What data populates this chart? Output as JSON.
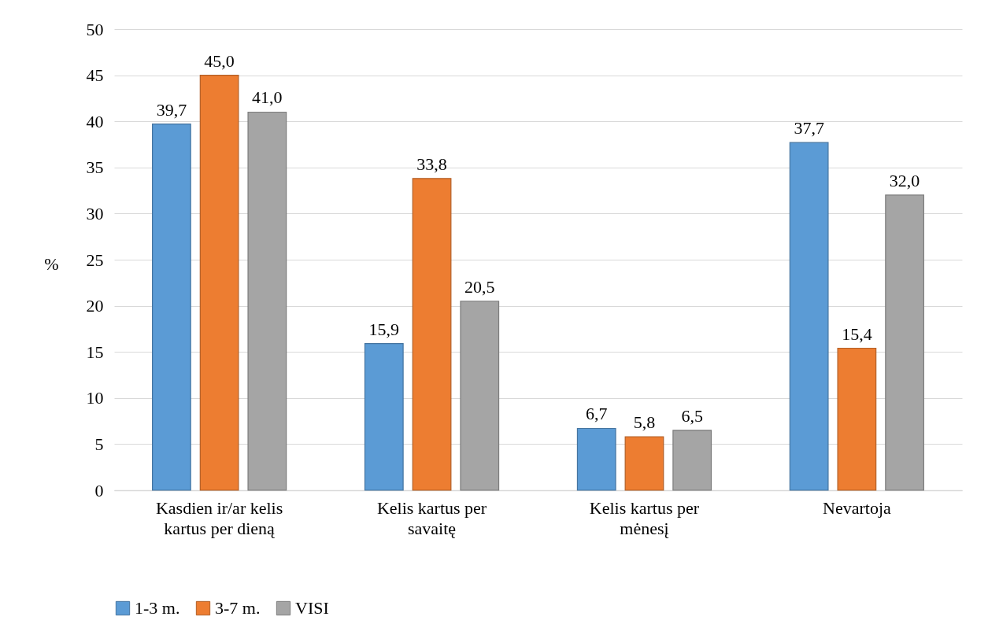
{
  "chart_data": {
    "type": "bar",
    "ylabel": "%",
    "categories": [
      "Kasdien ir/ar kelis kartus per dieną",
      "Kelis kartus per savaitę",
      "Kelis kartus per mėnesį",
      "Nevartoja"
    ],
    "series": [
      {
        "name": "1-3 m.",
        "color": "#5b9bd5",
        "values": [
          39.7,
          15.9,
          6.7,
          37.7
        ],
        "value_labels": [
          "39,7",
          "15,9",
          "6,7",
          "37,7"
        ]
      },
      {
        "name": "3-7 m.",
        "color": "#ed7d31",
        "values": [
          45.0,
          33.8,
          5.8,
          15.4
        ],
        "value_labels": [
          "45,0",
          "33,8",
          "5,8",
          "15,4"
        ]
      },
      {
        "name": "VISI",
        "color": "#a5a5a5",
        "values": [
          41.0,
          20.5,
          6.5,
          32.0
        ],
        "value_labels": [
          "41,0",
          "20,5",
          "6,5",
          "32,0"
        ]
      }
    ],
    "ylim": [
      0,
      50
    ],
    "yticks": [
      0,
      5,
      10,
      15,
      20,
      25,
      30,
      35,
      40,
      45,
      50
    ],
    "grid": "y",
    "legend": "bottom"
  }
}
